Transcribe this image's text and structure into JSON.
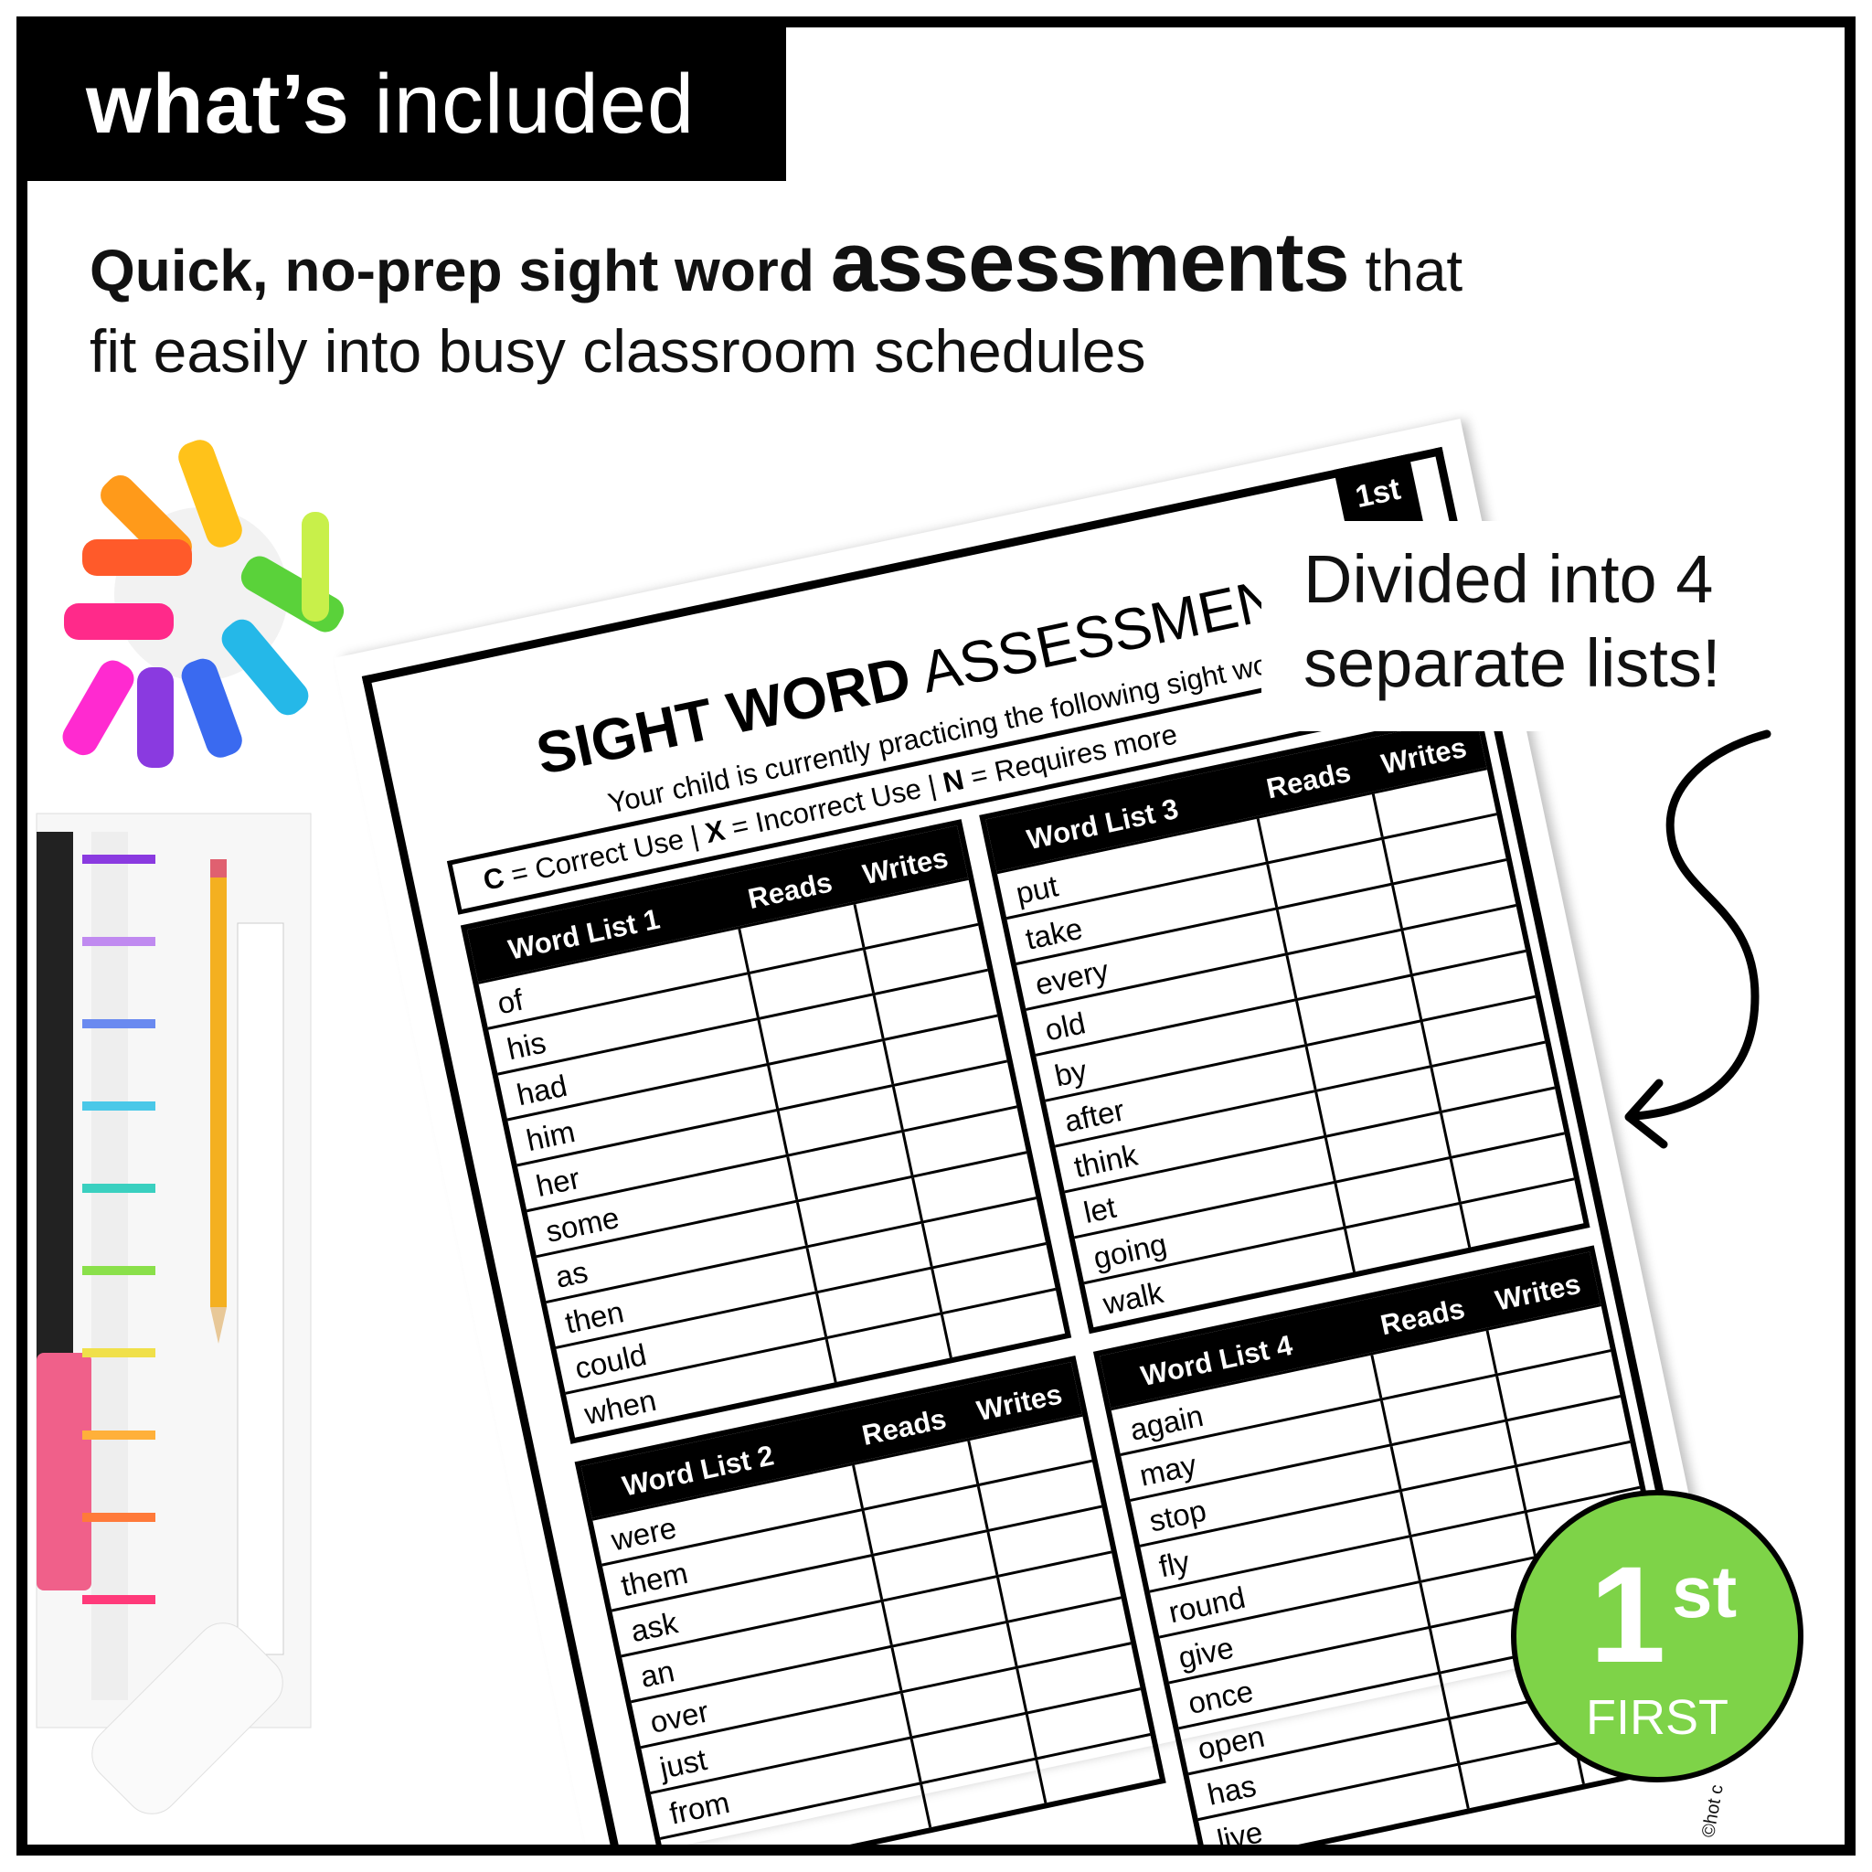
{
  "header": {
    "tag_bold": "what’s",
    "tag_light": " included"
  },
  "headline": {
    "part1": "Quick, no-prep sight word ",
    "emphasis": "assessments",
    "part2": " that",
    "line2": "fit easily into busy classroom schedules"
  },
  "callout": {
    "line1": "Divided into 4",
    "line2": "separate lists!",
    "icon": "curved-arrow-icon"
  },
  "worksheet": {
    "grade_tab": "1st",
    "title_bold": "SIGHT WORD",
    "title_light": " ASSESSMENT",
    "subtitle": "Your child is currently practicing the following sight wo",
    "legend": {
      "c_key": "C",
      "c_label": " = Correct Use  |  ",
      "x_key": "X",
      "x_label": " = Incorrect Use  |  ",
      "n_key": "N",
      "n_label": " = Requires more"
    },
    "col_reads": "Reads",
    "col_writes": "Writes",
    "lists": [
      {
        "title": "Word List 1",
        "words": [
          "of",
          "his",
          "had",
          "him",
          "her",
          "some",
          "as",
          "then",
          "could",
          "when"
        ]
      },
      {
        "title": "Word List 3",
        "words": [
          "put",
          "take",
          "every",
          "old",
          "by",
          "after",
          "think",
          "let",
          "going",
          "walk"
        ]
      },
      {
        "title": "Word List 2",
        "words": [
          "were",
          "them",
          "ask",
          "an",
          "over",
          "just",
          "from",
          ""
        ]
      },
      {
        "title": "Word List 4",
        "words": [
          "again",
          "may",
          "stop",
          "fly",
          "round",
          "give",
          "once",
          "open",
          "has",
          "live"
        ]
      }
    ],
    "copyright": "©hot c"
  },
  "badge": {
    "number": "1",
    "suffix": "st",
    "label": "FIRST",
    "color": "#7ed348"
  }
}
